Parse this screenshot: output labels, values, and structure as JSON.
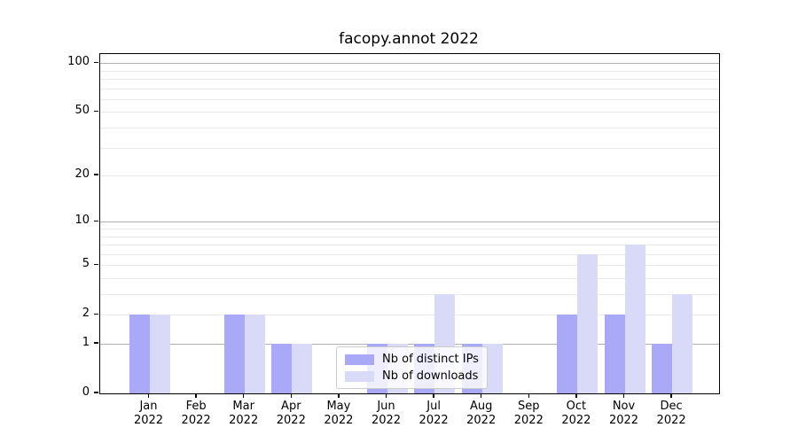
{
  "figure": {
    "title": "facopy.annot 2022",
    "background_color": "#ffffff"
  },
  "chart_data": {
    "type": "bar",
    "title": "facopy.annot 2022",
    "categories": [
      "Jan 2022",
      "Feb 2022",
      "Mar 2022",
      "Apr 2022",
      "May 2022",
      "Jun 2022",
      "Jul 2022",
      "Aug 2022",
      "Sep 2022",
      "Oct 2022",
      "Nov 2022",
      "Dec 2022"
    ],
    "series": [
      {
        "name": "Nb of distinct IPs",
        "color": "#a9a9f8",
        "values": [
          2,
          0,
          2,
          1,
          0,
          1,
          1,
          1,
          0,
          2,
          2,
          1
        ]
      },
      {
        "name": "Nb of downloads",
        "color": "#d9d9f8",
        "values": [
          2,
          0,
          2,
          1,
          0,
          1,
          3,
          1,
          0,
          6,
          7,
          3
        ]
      }
    ],
    "xlabel": "",
    "ylabel": "",
    "yscale": "log1p",
    "ylim": [
      0,
      117
    ],
    "ytick_labels": [
      0,
      1,
      2,
      5,
      10,
      20,
      50,
      100
    ],
    "gridlines_major": [
      1,
      10,
      100
    ],
    "gridlines_minor": [
      2,
      3,
      4,
      5,
      6,
      7,
      8,
      9,
      20,
      30,
      40,
      50,
      60,
      70,
      80,
      90
    ],
    "grid": true,
    "legend_position": "lower center",
    "colors": {
      "major_grid": "#b0b0b0",
      "minor_grid": "#e9e9e9",
      "axis": "#000000",
      "legend_border": "#cccccc"
    }
  }
}
